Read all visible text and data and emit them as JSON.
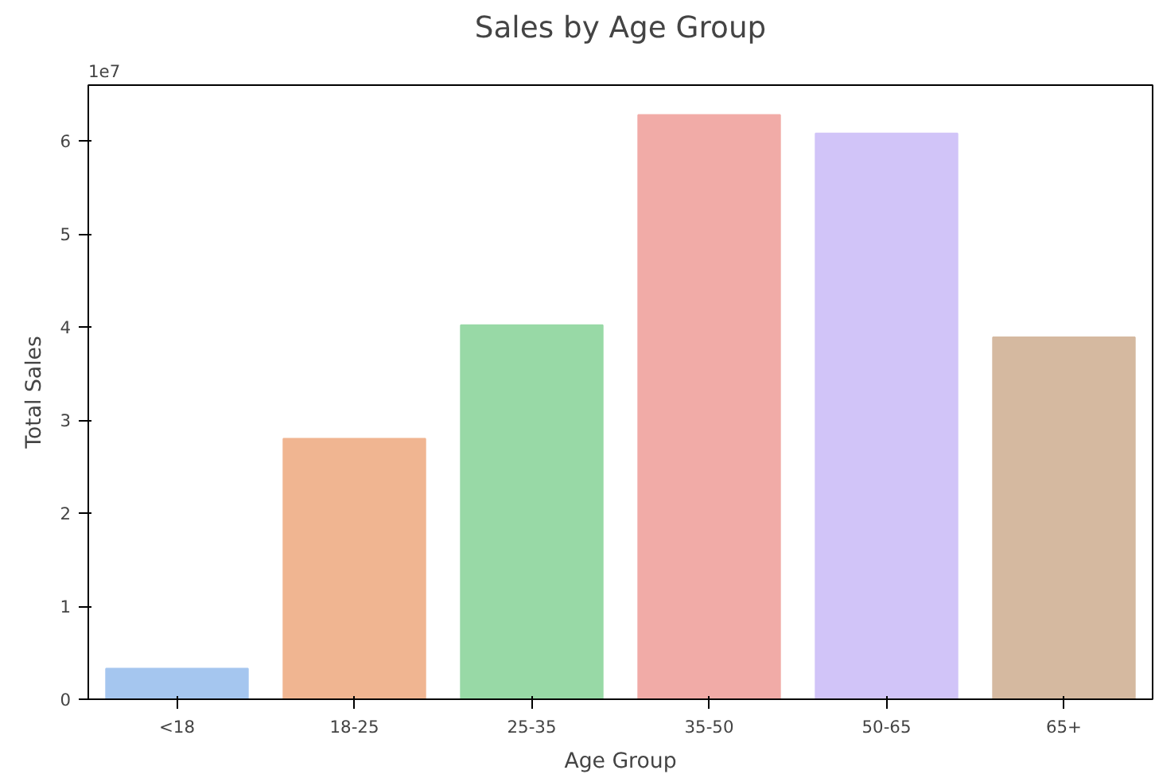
{
  "chart_data": {
    "type": "bar",
    "title": "Sales by Age Group",
    "xlabel": "Age Group",
    "ylabel": "Total Sales",
    "categories": [
      "<18",
      "18-25",
      "25-35",
      "35-50",
      "50-65",
      "65+"
    ],
    "values": [
      0.33,
      2.8,
      4.02,
      6.28,
      6.08,
      3.89
    ],
    "colors": [
      "#a5c6ef",
      "#f0b591",
      "#98d9a6",
      "#f1aba7",
      "#d1c4f8",
      "#d5b9a0"
    ],
    "ylim": [
      0,
      6.6
    ],
    "yticks": [
      0,
      1,
      2,
      3,
      4,
      5,
      6
    ],
    "annotations": [
      "1e7"
    ],
    "grid": false
  }
}
